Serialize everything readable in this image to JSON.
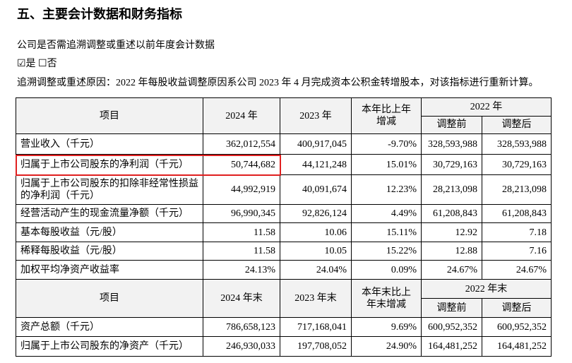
{
  "title": "五、主要会计数据和财务指标",
  "question": "公司是否需追溯调整或重述以前年度会计数据",
  "answer": "☑是 ☐否",
  "reason": "追溯调整或重述原因：2022 年每股收益调整原因系公司 2023 年 4 月完成资本公积金转增股本，对该指标进行重新计算。",
  "table1": {
    "header": {
      "item": "项目",
      "current": "2024 年",
      "previous": "2023 年",
      "change": "本年比上年增减",
      "base": "2022 年",
      "before": "调整前",
      "after": "调整后"
    },
    "rows": [
      [
        "营业收入（千元）",
        "362,012,554",
        "400,917,045",
        "-9.70%",
        "328,593,988",
        "328,593,988"
      ],
      [
        "归属于上市公司股东的净利润（千元）",
        "50,744,682",
        "44,121,248",
        "15.01%",
        "30,729,163",
        "30,729,163"
      ],
      [
        "归属于上市公司股东的扣除非经常性损益的净利润（千元）",
        "44,992,919",
        "40,091,674",
        "12.23%",
        "28,213,098",
        "28,213,098"
      ],
      [
        "经营活动产生的现金流量净额（千元）",
        "96,990,345",
        "92,826,124",
        "4.49%",
        "61,208,843",
        "61,208,843"
      ],
      [
        "基本每股收益（元/股）",
        "11.58",
        "10.06",
        "15.11%",
        "12.92",
        "7.18"
      ],
      [
        "稀释每股收益（元/股）",
        "11.58",
        "10.05",
        "15.22%",
        "12.88",
        "7.16"
      ],
      [
        "加权平均净资产收益率",
        "24.13%",
        "24.04%",
        "0.09%",
        "24.67%",
        "24.67%"
      ]
    ]
  },
  "table2": {
    "header": {
      "item": "项目",
      "current": "2024 年末",
      "previous": "2023 年末",
      "change": "本年末比上年末增减",
      "base": "2022 年末",
      "before": "调整前",
      "after": "调整后"
    },
    "rows": [
      [
        "资产总额（千元）",
        "786,658,123",
        "717,168,041",
        "9.69%",
        "600,952,352",
        "600,952,352"
      ],
      [
        "归属于上市公司股东的净资产（千元）",
        "246,930,033",
        "197,708,052",
        "24.90%",
        "164,481,252",
        "164,481,252"
      ]
    ]
  }
}
